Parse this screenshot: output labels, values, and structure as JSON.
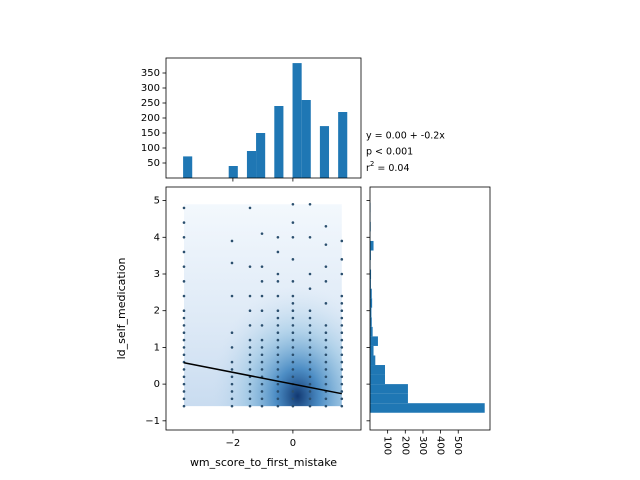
{
  "chart_data": [
    {
      "type": "scatter",
      "x_label": "wm_score_to_first_mistake",
      "y_label": "ld_self_medication",
      "xlim": [
        -4.23,
        2.27
      ],
      "ylim": [
        -1.25,
        5.37
      ],
      "xticks": [
        {
          "value": -2,
          "label": "−2"
        },
        0
      ],
      "yticks": [
        {
          "value": -1,
          "label": "−1"
        },
        0,
        1,
        2,
        3,
        4,
        5
      ],
      "color": "#2b4f6e",
      "x": [
        -3.63,
        -3.63,
        -3.63,
        -3.63,
        -3.63,
        -3.63,
        -3.63,
        -3.63,
        -3.63,
        -3.63,
        -3.63,
        -3.63,
        -3.63,
        -3.63,
        -3.63,
        -3.63,
        -3.63,
        -3.63,
        -3.63,
        -3.63,
        -3.63,
        -2.03,
        -2.03,
        -2.03,
        -2.03,
        -2.03,
        -2.03,
        -2.03,
        -2.03,
        -2.03,
        -2.03,
        -2.03,
        -2.03,
        -1.43,
        -1.43,
        -1.43,
        -1.43,
        -1.43,
        -1.43,
        -1.43,
        -1.43,
        -1.43,
        -1.43,
        -1.43,
        -1.43,
        -1.43,
        -1.43,
        -1.43,
        -1.03,
        -1.03,
        -1.03,
        -1.03,
        -1.03,
        -1.03,
        -1.03,
        -1.03,
        -1.03,
        -1.03,
        -1.03,
        -1.03,
        -1.03,
        -1.03,
        -1.03,
        -1.03,
        -0.5,
        -0.5,
        -0.5,
        -0.5,
        -0.5,
        -0.5,
        -0.5,
        -0.5,
        -0.5,
        -0.5,
        -0.5,
        -0.5,
        -0.5,
        -0.5,
        -0.5,
        -0.5,
        -0.5,
        -0.5,
        -0.5,
        0,
        0,
        0,
        0,
        0,
        0,
        0,
        0,
        0,
        0,
        0,
        0,
        0,
        0,
        0,
        0,
        0,
        0,
        0,
        0,
        0,
        0.57,
        0.57,
        0.57,
        0.57,
        0.57,
        0.57,
        0.57,
        0.57,
        0.57,
        0.57,
        0.57,
        0.57,
        0.57,
        0.57,
        0.57,
        0.57,
        0.57,
        0.57,
        1.1,
        1.1,
        1.1,
        1.1,
        1.1,
        1.1,
        1.1,
        1.1,
        1.1,
        1.1,
        1.1,
        1.1,
        1.1,
        1.1,
        1.1,
        1.1,
        1.1,
        1.63,
        1.63,
        1.63,
        1.63,
        1.63,
        1.63,
        1.63,
        1.63,
        1.63,
        1.63,
        1.63,
        1.63,
        1.63,
        1.63,
        1.63,
        1.63,
        1.63,
        1.63,
        1.63
      ],
      "y": [
        -0.6,
        -0.4,
        -0.2,
        0,
        0.2,
        0.4,
        0.6,
        0.8,
        1.0,
        1.2,
        1.4,
        1.6,
        1.8,
        2.0,
        2.4,
        2.8,
        3.2,
        3.6,
        4.0,
        4.4,
        4.8,
        -0.6,
        -0.4,
        -0.2,
        0,
        0.2,
        0.4,
        0.6,
        1.0,
        1.4,
        2.4,
        3.3,
        3.9,
        -0.6,
        -0.4,
        -0.2,
        0,
        0.2,
        0.4,
        0.6,
        0.8,
        1.0,
        1.2,
        1.6,
        2.0,
        2.4,
        3.2,
        4.8,
        -0.6,
        -0.4,
        -0.2,
        0,
        0.2,
        0.4,
        0.6,
        0.8,
        1.0,
        1.2,
        1.6,
        2.0,
        2.4,
        2.8,
        3.2,
        4.1,
        -0.6,
        -0.4,
        -0.2,
        0,
        0.2,
        0.4,
        0.6,
        0.8,
        1.0,
        1.2,
        1.4,
        1.6,
        1.8,
        2.0,
        2.4,
        2.8,
        3.0,
        3.6,
        4.0,
        -0.6,
        -0.4,
        -0.2,
        0,
        0.2,
        0.4,
        0.6,
        0.8,
        1.0,
        1.2,
        1.4,
        1.6,
        1.8,
        2.0,
        2.2,
        2.4,
        2.8,
        3.4,
        4.0,
        4.4,
        4.9,
        -0.6,
        -0.4,
        -0.2,
        0,
        0.2,
        0.4,
        0.6,
        0.8,
        1.0,
        1.2,
        1.4,
        1.6,
        1.8,
        2.0,
        2.6,
        3.0,
        4.0,
        4.9,
        -0.6,
        -0.4,
        -0.2,
        0,
        0.2,
        0.4,
        0.6,
        0.8,
        1.0,
        1.2,
        1.4,
        1.6,
        2.2,
        2.8,
        3.2,
        3.8,
        4.3,
        -0.6,
        -0.4,
        -0.2,
        0,
        0.2,
        0.4,
        0.6,
        0.8,
        1.0,
        1.2,
        1.4,
        1.6,
        1.8,
        2.0,
        2.2,
        2.4,
        3.0,
        3.4,
        3.9
      ],
      "regression": {
        "intercept": 0.0,
        "slope": -0.16,
        "color": "#000000"
      },
      "annotations": [
        "y = 0.00 + -0.2x",
        "p < 0.001"
      ],
      "r2": {
        "base": "r",
        "sup": "2",
        "text": "= 0.04"
      }
    },
    {
      "type": "histogram",
      "orientation": "vertical",
      "color": "#1f77b4",
      "xlim": [
        -4.23,
        2.27
      ],
      "xticks": [
        -2,
        0
      ],
      "ylim": [
        0,
        400
      ],
      "yticks": [
        50,
        100,
        150,
        200,
        250,
        300,
        350
      ],
      "bins": [
        -3.66,
        -3.356,
        -3.052,
        -2.748,
        -2.444,
        -2.14,
        -1.836,
        -1.532,
        -1.228,
        -0.924,
        -0.62,
        -0.316,
        -0.012,
        0.292,
        0.596,
        0.9,
        1.204,
        1.508,
        1.812
      ],
      "counts": [
        72,
        0,
        0,
        0,
        0,
        40,
        0,
        90,
        150,
        0,
        240,
        0,
        383,
        260,
        0,
        173,
        0,
        220
      ]
    },
    {
      "type": "histogram",
      "orientation": "horizontal",
      "color": "#1f77b4",
      "xlim": [
        0,
        680
      ],
      "xticks": [
        100,
        200,
        300,
        400,
        500
      ],
      "ylim": [
        -1.25,
        5.37
      ],
      "yticks": [
        -1,
        0,
        1,
        2,
        3,
        4,
        5
      ],
      "bins": [
        -0.78,
        -0.52,
        -0.26,
        0,
        0.26,
        0.52,
        0.78,
        1.04,
        1.3,
        1.56,
        1.82,
        2.08,
        2.34,
        2.6,
        2.86,
        3.12,
        3.38,
        3.64,
        3.9,
        4.16,
        4.42,
        4.68,
        4.94
      ],
      "counts": [
        650,
        215,
        215,
        85,
        85,
        30,
        20,
        45,
        15,
        10,
        8,
        12,
        10,
        5,
        6,
        3,
        5,
        20,
        2,
        4,
        2,
        3
      ]
    }
  ]
}
